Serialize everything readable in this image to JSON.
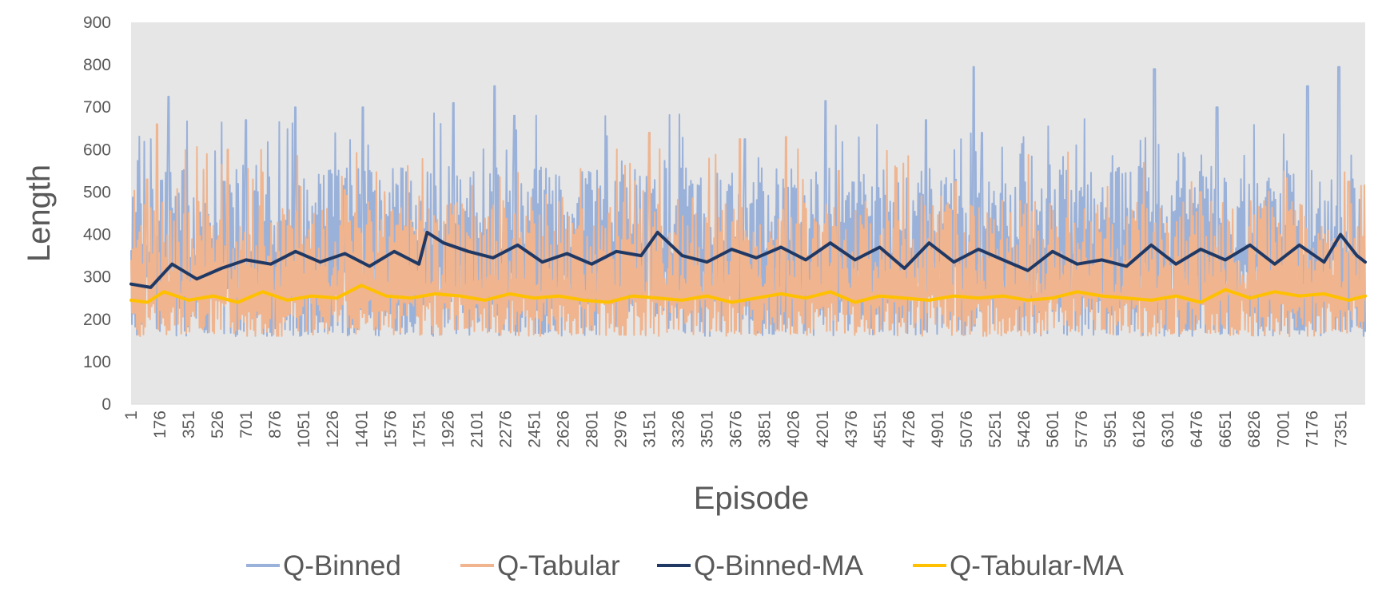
{
  "chart_data": {
    "type": "line",
    "title": "",
    "xlabel": "Episode",
    "ylabel": "Length",
    "ylim": [
      0,
      900
    ],
    "y_ticks": [
      "0",
      "100",
      "200",
      "300",
      "400",
      "500",
      "600",
      "700",
      "800",
      "900"
    ],
    "xlim": [
      1,
      7500
    ],
    "x_tick_labels": [
      "1",
      "176",
      "351",
      "526",
      "701",
      "876",
      "1051",
      "1226",
      "1401",
      "1576",
      "1751",
      "1926",
      "2101",
      "2276",
      "2451",
      "2626",
      "2801",
      "2976",
      "3151",
      "3326",
      "3501",
      "3676",
      "3851",
      "4026",
      "4201",
      "4376",
      "4551",
      "4726",
      "4901",
      "5076",
      "5251",
      "5426",
      "5601",
      "5776",
      "5951",
      "6126",
      "6301",
      "6476",
      "6651",
      "6826",
      "7001",
      "7176",
      "7351"
    ],
    "grid": false,
    "plot_background": "#e6e6e6",
    "legend_position": "bottom",
    "series": [
      {
        "name": "Q-Binned",
        "color": "#9ab1d9",
        "baseline": 345,
        "band": [
          160,
          560
        ],
        "peaks": [
          [
            230,
            725
          ],
          [
            700,
            670
          ],
          [
            1000,
            700
          ],
          [
            1410,
            700
          ],
          [
            1960,
            710
          ],
          [
            2210,
            750
          ],
          [
            2330,
            680
          ],
          [
            3150,
            640
          ],
          [
            3730,
            625
          ],
          [
            4220,
            715
          ],
          [
            4830,
            670
          ],
          [
            5120,
            795
          ],
          [
            5170,
            640
          ],
          [
            6220,
            790
          ],
          [
            6600,
            700
          ],
          [
            7150,
            750
          ],
          [
            7340,
            795
          ]
        ]
      },
      {
        "name": "Q-Tabular",
        "color": "#f0b48e",
        "baseline": 260,
        "band": [
          160,
          480
        ],
        "peaks": [
          [
            100,
            530
          ],
          [
            160,
            660
          ],
          [
            590,
            600
          ],
          [
            1300,
            505
          ],
          [
            3150,
            640
          ],
          [
            3700,
            625
          ],
          [
            3980,
            630
          ],
          [
            4300,
            550
          ],
          [
            5010,
            525
          ],
          [
            6500,
            500
          ],
          [
            7400,
            525
          ]
        ]
      },
      {
        "name": "Q-Binned-MA",
        "color": "#1f3864",
        "x": [
          1,
          120,
          250,
          400,
          550,
          700,
          850,
          1000,
          1150,
          1300,
          1450,
          1600,
          1750,
          1800,
          1900,
          2050,
          2200,
          2350,
          2500,
          2650,
          2800,
          2950,
          3100,
          3200,
          3350,
          3500,
          3650,
          3800,
          3950,
          4100,
          4250,
          4400,
          4550,
          4700,
          4850,
          5000,
          5150,
          5300,
          5450,
          5600,
          5750,
          5900,
          6050,
          6200,
          6350,
          6500,
          6650,
          6800,
          6950,
          7100,
          7250,
          7350,
          7450,
          7500
        ],
        "y": [
          283,
          275,
          330,
          295,
          320,
          340,
          330,
          360,
          335,
          355,
          325,
          360,
          330,
          405,
          380,
          360,
          345,
          375,
          335,
          355,
          330,
          360,
          350,
          405,
          350,
          335,
          365,
          345,
          370,
          340,
          380,
          340,
          370,
          320,
          380,
          335,
          365,
          340,
          315,
          360,
          330,
          340,
          325,
          375,
          330,
          365,
          340,
          375,
          330,
          375,
          335,
          400,
          350,
          335
        ]
      },
      {
        "name": "Q-Tabular-MA",
        "color": "#ffc000",
        "x": [
          1,
          100,
          200,
          350,
          500,
          650,
          800,
          950,
          1100,
          1250,
          1400,
          1550,
          1700,
          1850,
          2000,
          2150,
          2300,
          2450,
          2600,
          2750,
          2900,
          3050,
          3200,
          3350,
          3500,
          3650,
          3800,
          3950,
          4100,
          4250,
          4400,
          4550,
          4700,
          4850,
          5000,
          5150,
          5300,
          5450,
          5600,
          5750,
          5900,
          6050,
          6200,
          6350,
          6500,
          6650,
          6800,
          6950,
          7100,
          7250,
          7400,
          7500
        ],
        "y": [
          245,
          240,
          265,
          245,
          255,
          240,
          265,
          245,
          255,
          250,
          280,
          255,
          250,
          260,
          255,
          245,
          260,
          250,
          255,
          245,
          240,
          255,
          250,
          245,
          255,
          240,
          250,
          260,
          250,
          265,
          240,
          255,
          250,
          245,
          255,
          250,
          255,
          245,
          250,
          265,
          255,
          250,
          245,
          255,
          240,
          270,
          250,
          265,
          255,
          260,
          245,
          255
        ]
      }
    ]
  }
}
